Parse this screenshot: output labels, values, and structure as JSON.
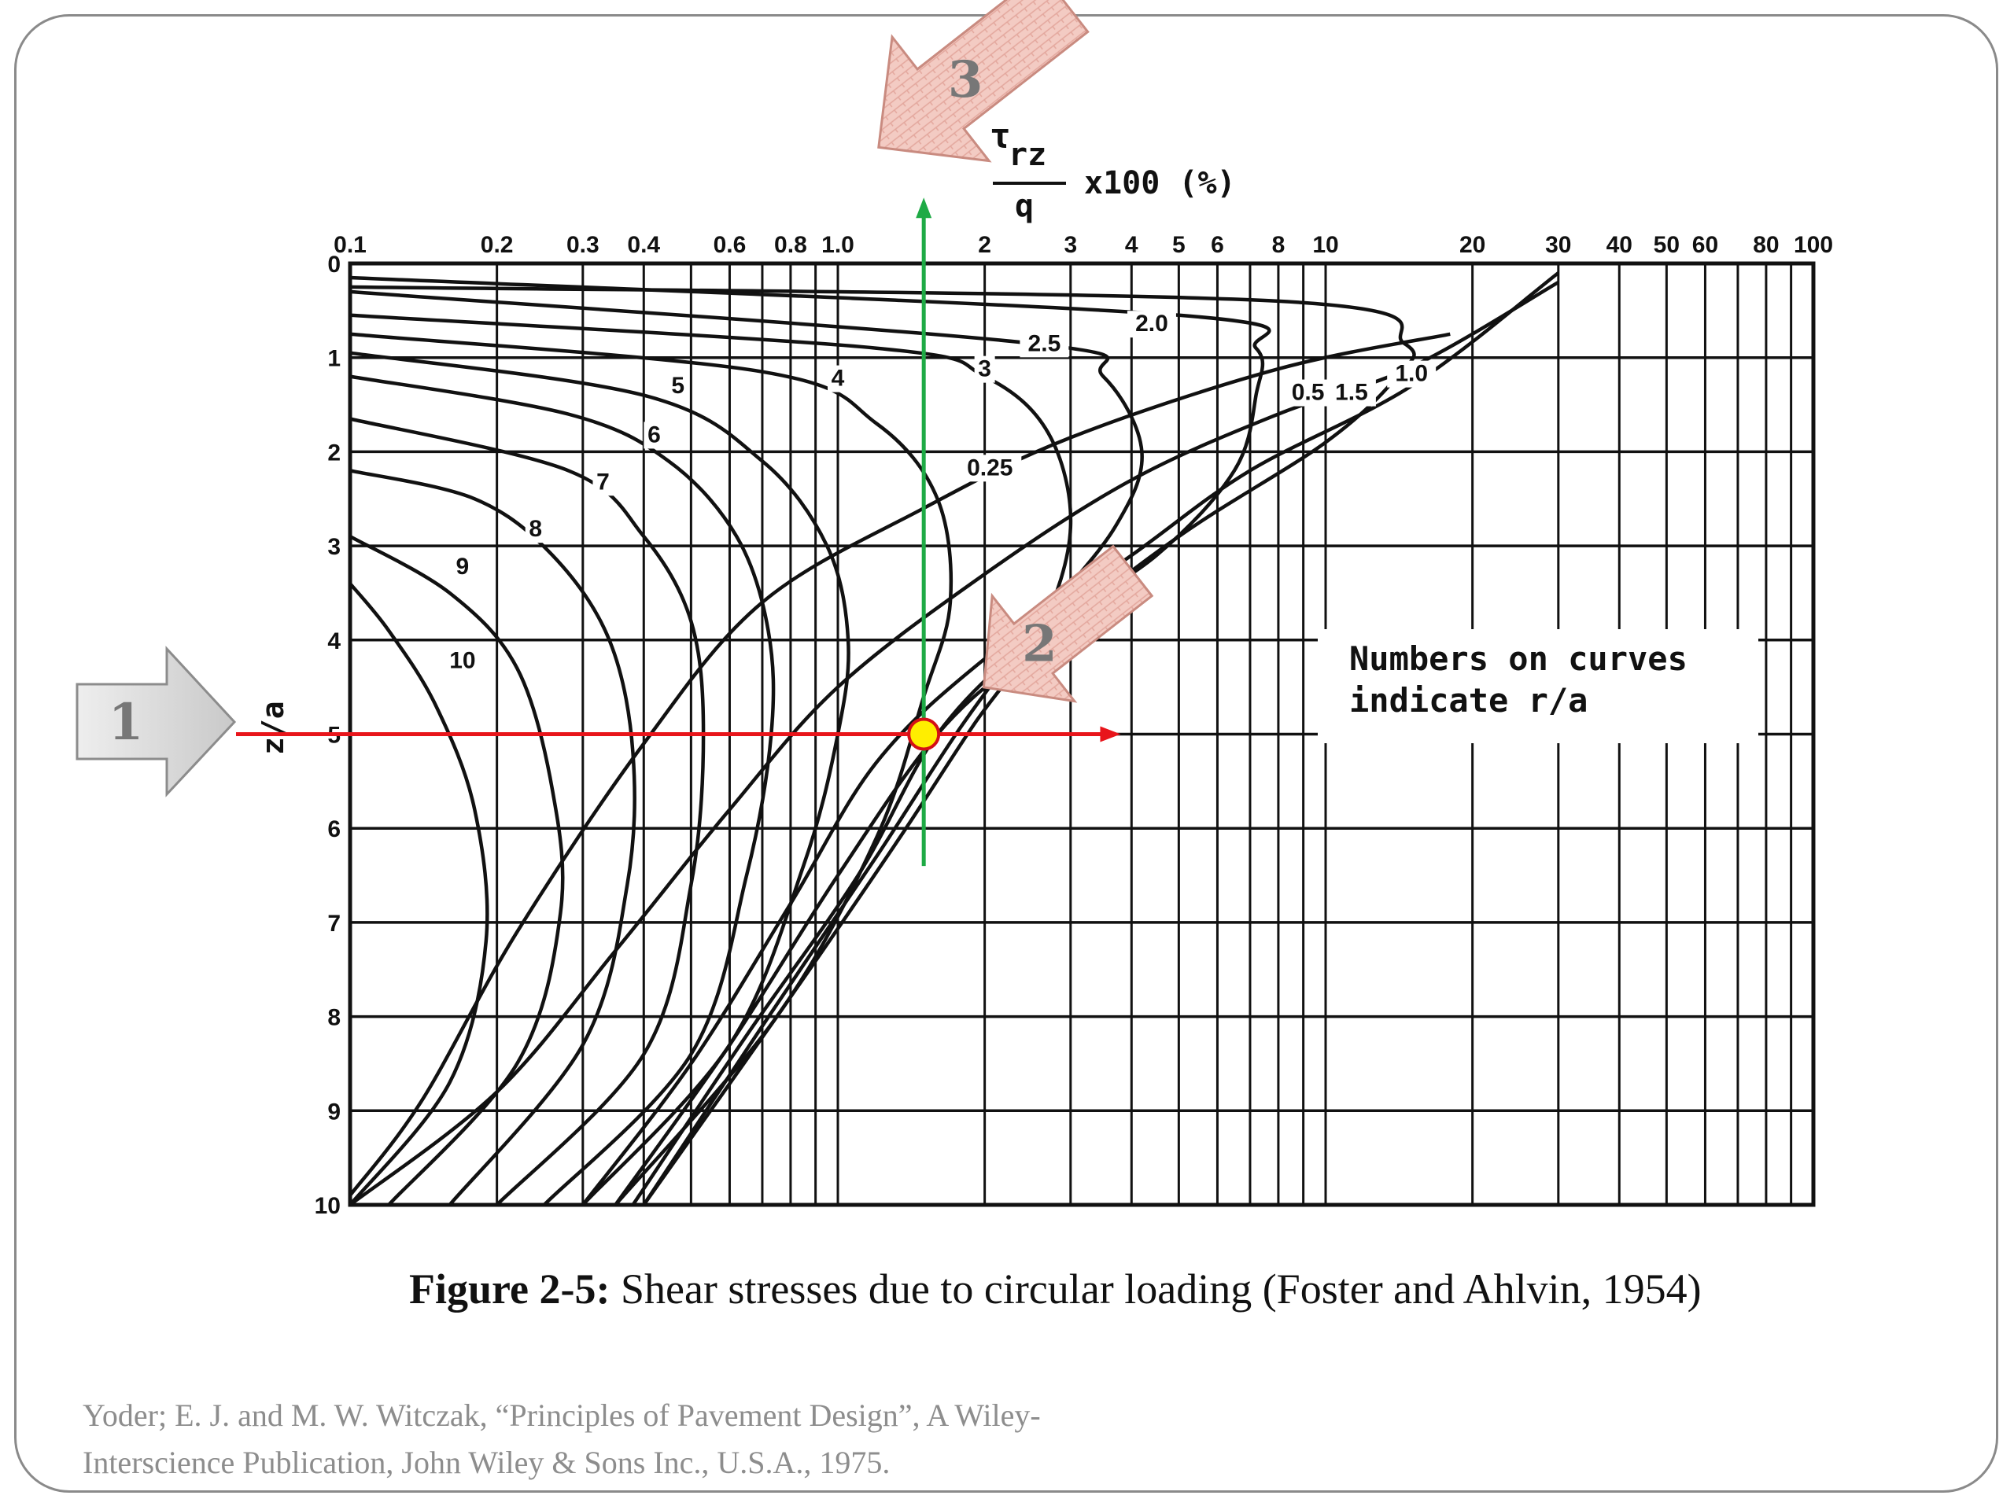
{
  "caption": {
    "figure_label": "Figure 2-5:",
    "figure_text": " Shear stresses due to circular loading (Foster and Ahlvin, 1954)"
  },
  "reference": {
    "line1": "Yoder; E. J. and M. W. Witczak, “Principles of Pavement Design”, A Wiley-",
    "line2": "Interscience Publication, John Wiley & Sons Inc., U.S.A., 1975."
  },
  "callouts": {
    "arrow1": "1",
    "arrow2": "2",
    "arrow3": "3"
  },
  "colors": {
    "grid": "#111111",
    "curve": "#111111",
    "horizontal_guide": "#e8151b",
    "vertical_guide": "#1eaa45",
    "marker_fill": "#ffee00",
    "arrow1_fill": "#d9d9d9",
    "arrow_pink_fill": "#f2c8c0"
  },
  "chart_data": {
    "type": "line",
    "x_axis": {
      "label_parts": [
        "τ",
        "rz",
        "q",
        "x100 (%)"
      ],
      "scale": "log",
      "range": [
        0.1,
        100
      ],
      "position": "top",
      "tick_labels": [
        "0.1",
        "0.2",
        "0.3",
        "0.4",
        "0.6",
        "0.8",
        "1.0",
        "2",
        "3",
        "4",
        "5",
        "6",
        "8",
        "10",
        "20",
        "30",
        "40",
        "50",
        "60",
        "80",
        "100"
      ],
      "tick_values": [
        0.1,
        0.2,
        0.3,
        0.4,
        0.6,
        0.8,
        1.0,
        2,
        3,
        4,
        5,
        6,
        8,
        10,
        20,
        30,
        40,
        50,
        60,
        80,
        100
      ],
      "minor_values": [
        0.5,
        0.7,
        0.9,
        7,
        9,
        70,
        90
      ]
    },
    "y_axis": {
      "label": "z/a",
      "range": [
        0,
        10
      ],
      "inverted": true,
      "tick_labels": [
        "0",
        "1",
        "2",
        "3",
        "4",
        "5",
        "6",
        "7",
        "8",
        "9",
        "10"
      ]
    },
    "grid": true,
    "annotation": {
      "line1": "Numbers on curves",
      "line2": "indicate r/a"
    },
    "series": [
      {
        "name": "0.25",
        "points": [
          [
            0.1,
            9.9
          ],
          [
            0.14,
            8.9
          ],
          [
            0.22,
            7.1
          ],
          [
            0.4,
            5.1
          ],
          [
            0.7,
            3.6
          ],
          [
            1.5,
            2.6
          ],
          [
            3,
            1.85
          ],
          [
            8,
            1.12
          ],
          [
            18,
            0.75
          ]
        ]
      },
      {
        "name": "0.5",
        "points": [
          [
            0.1,
            10
          ],
          [
            0.2,
            8.8
          ],
          [
            0.35,
            7.3
          ],
          [
            0.6,
            5.8
          ],
          [
            1.0,
            4.5
          ],
          [
            2,
            3.3
          ],
          [
            4,
            2.3
          ],
          [
            8,
            1.6
          ],
          [
            15,
            1.1
          ],
          [
            30,
            0.2
          ]
        ]
      },
      {
        "name": "1.0",
        "points": [
          [
            0.3,
            10
          ],
          [
            0.5,
            8.5
          ],
          [
            0.8,
            6.8
          ],
          [
            1.2,
            5.3
          ],
          [
            2,
            4.2
          ],
          [
            4,
            3.1
          ],
          [
            7,
            2.2
          ],
          [
            15,
            1.3
          ],
          [
            30,
            0.1
          ]
        ]
      },
      {
        "name": "1.5",
        "points": [
          [
            0.35,
            10
          ],
          [
            0.6,
            8.3
          ],
          [
            1.0,
            6.5
          ],
          [
            1.6,
            5.0
          ],
          [
            2.5,
            4.1
          ],
          [
            5,
            2.9
          ],
          [
            10,
            1.9
          ],
          [
            14,
            1.2
          ],
          [
            14.5,
            0.85
          ],
          [
            8,
            0.4
          ],
          [
            0.1,
            0.25
          ]
        ]
      },
      {
        "name": "2.0",
        "points": [
          [
            0.38,
            10
          ],
          [
            0.65,
            8.2
          ],
          [
            1.1,
            6.5
          ],
          [
            1.6,
            5.0
          ],
          [
            2.5,
            4.0
          ],
          [
            4.5,
            3.1
          ],
          [
            6.5,
            2.2
          ],
          [
            7.2,
            1.4
          ],
          [
            7.2,
            0.9
          ],
          [
            5,
            0.55
          ],
          [
            0.1,
            0.15
          ]
        ]
      },
      {
        "name": "2.5",
        "points": [
          [
            0.4,
            10
          ],
          [
            0.7,
            8.1
          ],
          [
            1.2,
            6.3
          ],
          [
            1.8,
            4.9
          ],
          [
            2.6,
            3.8
          ],
          [
            3.7,
            2.8
          ],
          [
            4.2,
            2.0
          ],
          [
            3.5,
            1.2
          ],
          [
            2.5,
            0.85
          ],
          [
            0.1,
            0.3
          ]
        ]
      },
      {
        "name": "3",
        "points": [
          [
            0.4,
            10
          ],
          [
            0.75,
            8.0
          ],
          [
            1.3,
            6.2
          ],
          [
            1.9,
            4.9
          ],
          [
            2.6,
            3.9
          ],
          [
            3.0,
            2.8
          ],
          [
            2.7,
            1.8
          ],
          [
            2.0,
            1.2
          ],
          [
            1.2,
            0.9
          ],
          [
            0.1,
            0.55
          ]
        ]
      },
      {
        "name": "4",
        "points": [
          [
            0.35,
            10
          ],
          [
            0.75,
            8.0
          ],
          [
            1.2,
            6.1
          ],
          [
            1.5,
            4.6
          ],
          [
            1.7,
            3.6
          ],
          [
            1.6,
            2.5
          ],
          [
            1.2,
            1.7
          ],
          [
            0.7,
            1.15
          ],
          [
            0.1,
            0.75
          ]
        ]
      },
      {
        "name": "5",
        "points": [
          [
            0.3,
            10
          ],
          [
            0.6,
            8.3
          ],
          [
            0.85,
            6.4
          ],
          [
            1.0,
            5.0
          ],
          [
            1.05,
            4.0
          ],
          [
            0.95,
            3.0
          ],
          [
            0.7,
            2.1
          ],
          [
            0.4,
            1.4
          ],
          [
            0.1,
            0.95
          ]
        ]
      },
      {
        "name": "6",
        "points": [
          [
            0.25,
            10
          ],
          [
            0.5,
            8.4
          ],
          [
            0.65,
            6.5
          ],
          [
            0.73,
            5.0
          ],
          [
            0.72,
            3.9
          ],
          [
            0.62,
            2.9
          ],
          [
            0.45,
            2.1
          ],
          [
            0.28,
            1.6
          ],
          [
            0.1,
            1.2
          ]
        ]
      },
      {
        "name": "7",
        "points": [
          [
            0.2,
            10
          ],
          [
            0.4,
            8.4
          ],
          [
            0.5,
            6.6
          ],
          [
            0.53,
            5.0
          ],
          [
            0.5,
            3.8
          ],
          [
            0.4,
            2.9
          ],
          [
            0.28,
            2.2
          ],
          [
            0.1,
            1.65
          ]
        ]
      },
      {
        "name": "8",
        "points": [
          [
            0.16,
            10
          ],
          [
            0.3,
            8.3
          ],
          [
            0.37,
            6.6
          ],
          [
            0.38,
            5.2
          ],
          [
            0.34,
            4.0
          ],
          [
            0.26,
            3.1
          ],
          [
            0.18,
            2.5
          ],
          [
            0.1,
            2.2
          ]
        ]
      },
      {
        "name": "9",
        "points": [
          [
            0.12,
            10
          ],
          [
            0.22,
            8.5
          ],
          [
            0.27,
            6.9
          ],
          [
            0.26,
            5.6
          ],
          [
            0.22,
            4.3
          ],
          [
            0.16,
            3.5
          ],
          [
            0.1,
            2.9
          ]
        ]
      },
      {
        "name": "10",
        "points": [
          [
            0.1,
            10
          ],
          [
            0.16,
            8.7
          ],
          [
            0.19,
            7.2
          ],
          [
            0.18,
            5.8
          ],
          [
            0.15,
            4.7
          ],
          [
            0.12,
            3.9
          ],
          [
            0.1,
            3.4
          ]
        ]
      }
    ],
    "curve_labels": [
      {
        "text": "0.25",
        "x": 2.05,
        "y": 2.25
      },
      {
        "text": "0.5",
        "x": 9.2,
        "y": 1.45
      },
      {
        "text": "1.5",
        "x": 11.3,
        "y": 1.45
      },
      {
        "text": "1.0",
        "x": 15.0,
        "y": 1.25
      },
      {
        "text": "2.0",
        "x": 4.4,
        "y": 0.72
      },
      {
        "text": "2.5",
        "x": 2.65,
        "y": 0.93
      },
      {
        "text": "3",
        "x": 2.0,
        "y": 1.2
      },
      {
        "text": "4",
        "x": 1.0,
        "y": 1.3
      },
      {
        "text": "5",
        "x": 0.47,
        "y": 1.38
      },
      {
        "text": "6",
        "x": 0.42,
        "y": 1.9
      },
      {
        "text": "7",
        "x": 0.33,
        "y": 2.4
      },
      {
        "text": "8",
        "x": 0.24,
        "y": 2.9
      },
      {
        "text": "9",
        "x": 0.17,
        "y": 3.3
      },
      {
        "text": "10",
        "x": 0.17,
        "y": 4.3
      }
    ],
    "guides": {
      "horizontal_y": 5.0,
      "horizontal_x_end": 3.8,
      "vertical_x": 1.5,
      "vertical_y_range": [
        -0.7,
        6.4
      ],
      "intersection": [
        1.5,
        5.0
      ]
    }
  }
}
